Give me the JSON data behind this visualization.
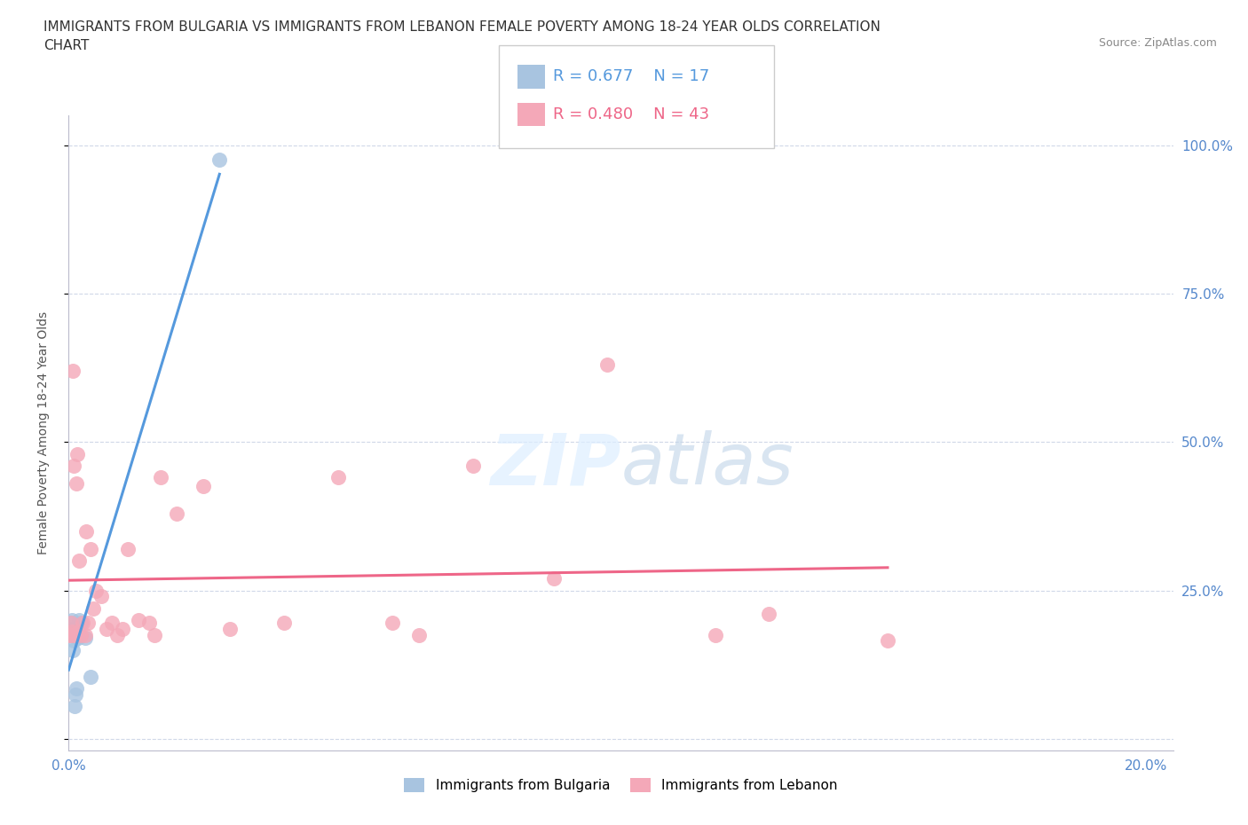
{
  "title": "IMMIGRANTS FROM BULGARIA VS IMMIGRANTS FROM LEBANON FEMALE POVERTY AMONG 18-24 YEAR OLDS CORRELATION\nCHART",
  "source_text": "Source: ZipAtlas.com",
  "ylabel": "Female Poverty Among 18-24 Year Olds",
  "r_bulgaria": 0.677,
  "n_bulgaria": 17,
  "r_lebanon": 0.48,
  "n_lebanon": 43,
  "background_color": "#ffffff",
  "grid_color": "#d0d8e8",
  "bulgaria_color": "#a8c4e0",
  "lebanon_color": "#f4a8b8",
  "bulgaria_line_color": "#5599dd",
  "lebanon_line_color": "#ee6688",
  "yticks": [
    0.0,
    0.25,
    0.5,
    0.75,
    1.0
  ],
  "ytick_labels": [
    "",
    "25.0%",
    "50.0%",
    "75.0%",
    "100.0%"
  ],
  "bulgaria_points_x": [
    0.0002,
    0.0003,
    0.0005,
    0.0006,
    0.0007,
    0.0008,
    0.0009,
    0.001,
    0.0011,
    0.0012,
    0.0015,
    0.0018,
    0.002,
    0.0022,
    0.003,
    0.004,
    0.028
  ],
  "bulgaria_points_y": [
    0.175,
    0.185,
    0.195,
    0.2,
    0.15,
    0.175,
    0.185,
    0.165,
    0.055,
    0.075,
    0.085,
    0.17,
    0.2,
    0.195,
    0.17,
    0.105,
    0.975
  ],
  "lebanon_points_x": [
    0.0003,
    0.0004,
    0.0005,
    0.0006,
    0.0007,
    0.001,
    0.0012,
    0.0013,
    0.0015,
    0.0016,
    0.0018,
    0.002,
    0.0022,
    0.0025,
    0.003,
    0.0032,
    0.0035,
    0.004,
    0.0045,
    0.005,
    0.006,
    0.007,
    0.008,
    0.009,
    0.01,
    0.011,
    0.013,
    0.015,
    0.016,
    0.017,
    0.02,
    0.025,
    0.03,
    0.04,
    0.05,
    0.06,
    0.065,
    0.075,
    0.09,
    0.1,
    0.12,
    0.13,
    0.152
  ],
  "lebanon_points_y": [
    0.175,
    0.195,
    0.175,
    0.18,
    0.62,
    0.46,
    0.175,
    0.175,
    0.43,
    0.48,
    0.18,
    0.3,
    0.175,
    0.195,
    0.175,
    0.35,
    0.195,
    0.32,
    0.22,
    0.25,
    0.24,
    0.185,
    0.195,
    0.175,
    0.185,
    0.32,
    0.2,
    0.195,
    0.175,
    0.44,
    0.38,
    0.425,
    0.185,
    0.195,
    0.44,
    0.195,
    0.175,
    0.46,
    0.27,
    0.63,
    0.175,
    0.21,
    0.165
  ],
  "xlim": [
    0.0,
    0.205
  ],
  "ylim": [
    -0.02,
    1.05
  ],
  "xtick_positions": [
    0.0,
    0.2
  ],
  "xtick_labels": [
    "0.0%",
    "20.0%"
  ]
}
